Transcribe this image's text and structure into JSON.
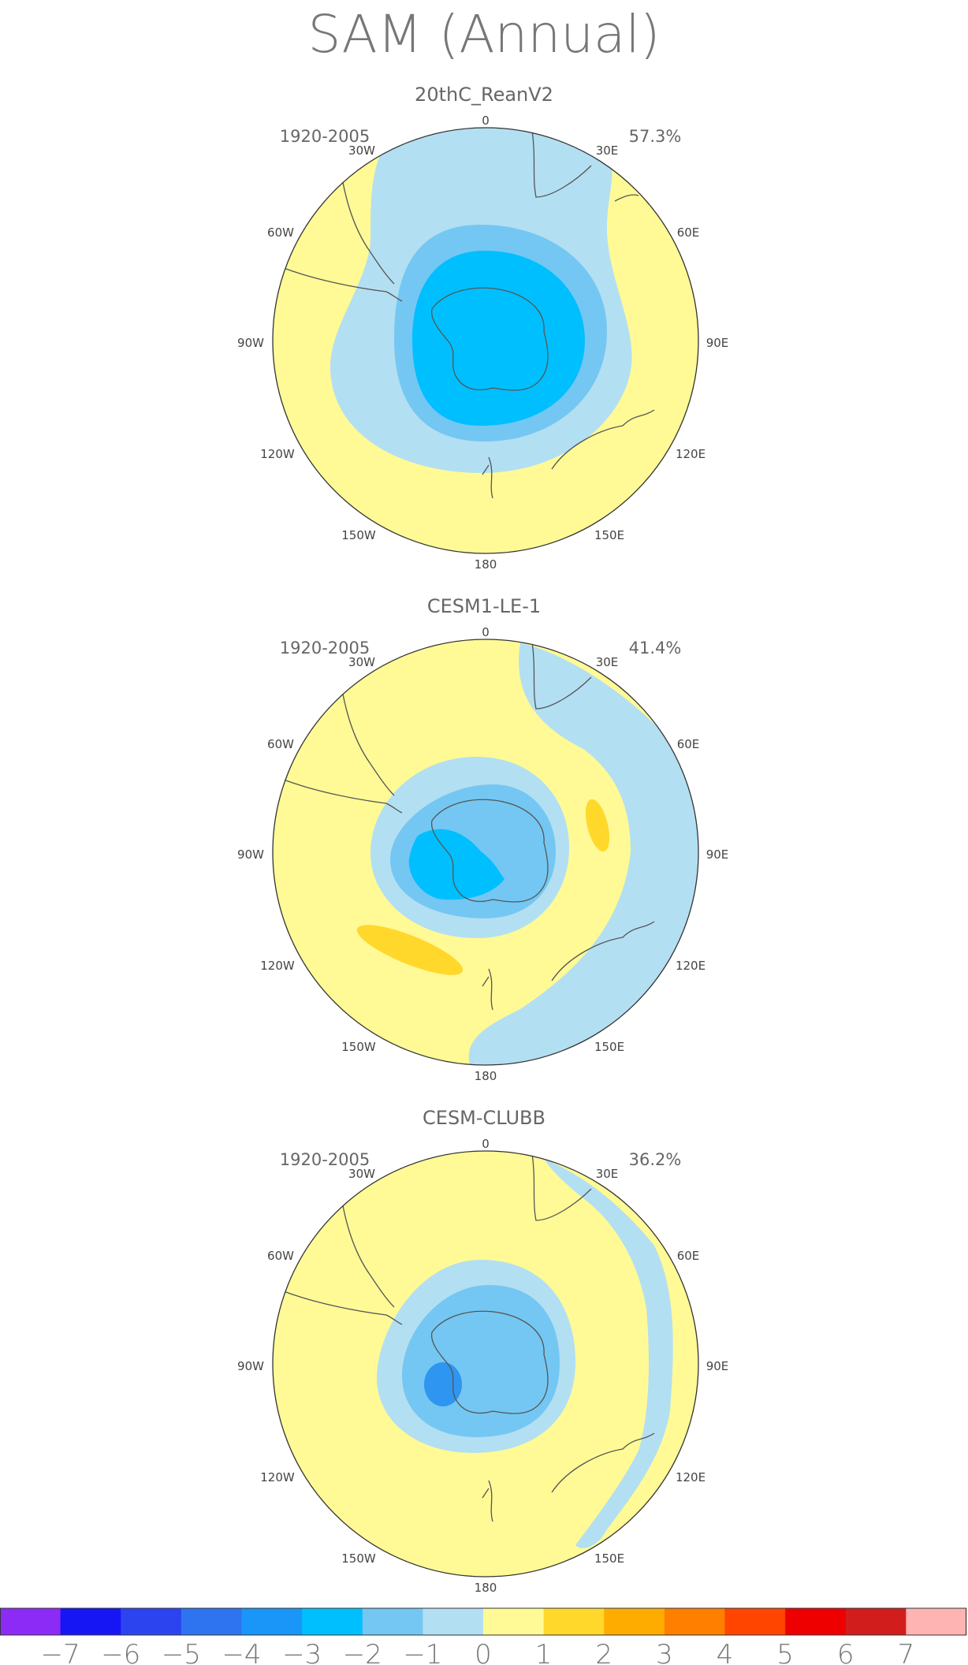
{
  "chart_data": {
    "title": "SAM (Annual)",
    "panels": [
      {
        "type": "heatmap",
        "projection": "south-polar-stereographic",
        "title": "20thC_ReanV2",
        "period": "1920-2005",
        "variance": "57.3%"
      },
      {
        "type": "heatmap",
        "projection": "south-polar-stereographic",
        "title": "CESM1-LE-1",
        "period": "1920-2005",
        "variance": "41.4%"
      },
      {
        "type": "heatmap",
        "projection": "south-polar-stereographic",
        "title": "CESM-CLUBB",
        "period": "1920-2005",
        "variance": "36.2%"
      }
    ],
    "longitude_labels": [
      "0",
      "30E",
      "60E",
      "90E",
      "120E",
      "150E",
      "180",
      "150W",
      "120W",
      "90W",
      "60W",
      "30W"
    ],
    "colorbar": {
      "ticks": [
        "−7",
        "−6",
        "−5",
        "−4",
        "−3",
        "−2",
        "−1",
        "0",
        "1",
        "2",
        "3",
        "4",
        "5",
        "6",
        "7"
      ],
      "colors": [
        "#8c2bf5",
        "#1616f5",
        "#2b44f0",
        "#2e74f0",
        "#1a96f8",
        "#00bfff",
        "#74c7f2",
        "#b3dff2",
        "#fffa96",
        "#ffd82b",
        "#ffac00",
        "#ff7f00",
        "#ff4500",
        "#ee0000",
        "#d21d1d",
        "#ffb4b4"
      ]
    }
  }
}
